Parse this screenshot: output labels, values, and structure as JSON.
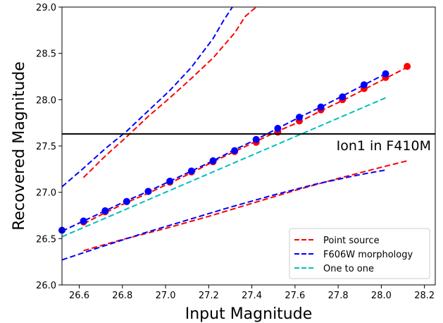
{
  "chart_data": {
    "type": "line",
    "xlabel": "Input Magnitude",
    "ylabel": "Recovered Magnitude",
    "xlim": [
      26.52,
      28.25
    ],
    "ylim": [
      26.0,
      29.0
    ],
    "xticks": [
      "26.6",
      "26.8",
      "27.0",
      "27.2",
      "27.4",
      "27.6",
      "27.8",
      "28.0",
      "28.2"
    ],
    "yticks": [
      "26.0",
      "26.5",
      "27.0",
      "27.5",
      "28.0",
      "28.5",
      "29.0"
    ],
    "hline": {
      "y": 27.63,
      "label": "Ion1 in F410M",
      "color": "#000000"
    },
    "legend_position": "lower-right",
    "legend": [
      {
        "label": "Point source",
        "color": "#ff0000"
      },
      {
        "label": "F606W morphology",
        "color": "#0000ff"
      },
      {
        "label": "One to one",
        "color": "#00bfbf"
      }
    ],
    "dashed_series": [
      {
        "legend": "Point source",
        "role": "median",
        "color": "#ff0000",
        "x": [
          26.62,
          26.72,
          26.82,
          26.92,
          27.02,
          27.12,
          27.22,
          27.32,
          27.42,
          27.52,
          27.62,
          27.72,
          27.82,
          27.92,
          28.02,
          28.12
        ],
        "y": [
          26.66,
          26.78,
          26.89,
          26.99,
          27.1,
          27.21,
          27.33,
          27.44,
          27.55,
          27.66,
          27.76,
          27.88,
          27.99,
          28.11,
          28.23,
          28.35
        ]
      },
      {
        "legend": "Point source",
        "role": "lower",
        "color": "#ff0000",
        "x": [
          26.62,
          26.8,
          27.0,
          27.2,
          27.4,
          27.6,
          27.8,
          28.0,
          28.12
        ],
        "y": [
          26.37,
          26.49,
          26.61,
          26.74,
          26.88,
          27.02,
          27.15,
          27.27,
          27.34
        ]
      },
      {
        "legend": "Point source",
        "role": "upper",
        "color": "#ff0000",
        "x": [
          26.62,
          26.72,
          26.82,
          26.92,
          27.02,
          27.12,
          27.22,
          27.32,
          27.37,
          27.42
        ],
        "y": [
          27.16,
          27.39,
          27.6,
          27.82,
          28.02,
          28.23,
          28.45,
          28.72,
          28.9,
          29.0
        ]
      },
      {
        "legend": "F606W morphology",
        "role": "median",
        "color": "#0000ff",
        "x": [
          26.52,
          26.62,
          26.72,
          26.82,
          26.92,
          27.02,
          27.12,
          27.22,
          27.32,
          27.42,
          27.52,
          27.62,
          27.72,
          27.82,
          27.92,
          28.02
        ],
        "y": [
          26.58,
          26.69,
          26.8,
          26.91,
          27.01,
          27.12,
          27.23,
          27.34,
          27.46,
          27.57,
          27.69,
          27.81,
          27.92,
          28.04,
          28.16,
          28.28
        ]
      },
      {
        "legend": "F606W morphology",
        "role": "lower",
        "color": "#0000ff",
        "x": [
          26.52,
          26.7,
          26.9,
          27.1,
          27.3,
          27.5,
          27.7,
          27.9,
          28.02
        ],
        "y": [
          26.27,
          26.41,
          26.56,
          26.7,
          26.84,
          26.97,
          27.09,
          27.19,
          27.24
        ]
      },
      {
        "legend": "F606W morphology",
        "role": "upper",
        "color": "#0000ff",
        "x": [
          26.52,
          26.62,
          26.72,
          26.82,
          26.92,
          27.02,
          27.12,
          27.22,
          27.27,
          27.31
        ],
        "y": [
          27.06,
          27.26,
          27.47,
          27.66,
          27.88,
          28.1,
          28.35,
          28.66,
          28.86,
          29.0
        ]
      },
      {
        "legend": "One to one",
        "role": "line",
        "color": "#00bfbf",
        "x": [
          26.52,
          28.02
        ],
        "y": [
          26.52,
          28.02
        ]
      }
    ],
    "marker_series": [
      {
        "color": "#ff0000",
        "x": [
          26.62,
          26.72,
          26.82,
          26.92,
          27.02,
          27.12,
          27.22,
          27.32,
          27.42,
          27.52,
          27.62,
          27.72,
          27.82,
          27.92,
          28.02,
          28.12
        ],
        "y": [
          26.68,
          26.79,
          26.9,
          27.01,
          27.11,
          27.22,
          27.33,
          27.44,
          27.54,
          27.65,
          27.77,
          27.89,
          28.0,
          28.12,
          28.24,
          28.36
        ]
      },
      {
        "color": "#0000ff",
        "x": [
          26.52,
          26.62,
          26.72,
          26.82,
          26.92,
          27.02,
          27.12,
          27.22,
          27.32,
          27.42,
          27.52,
          27.62,
          27.72,
          27.82,
          27.92,
          28.02
        ],
        "y": [
          26.59,
          26.69,
          26.8,
          26.9,
          27.01,
          27.12,
          27.23,
          27.34,
          27.45,
          27.57,
          27.69,
          27.81,
          27.92,
          28.03,
          28.16,
          28.28
        ]
      }
    ]
  }
}
